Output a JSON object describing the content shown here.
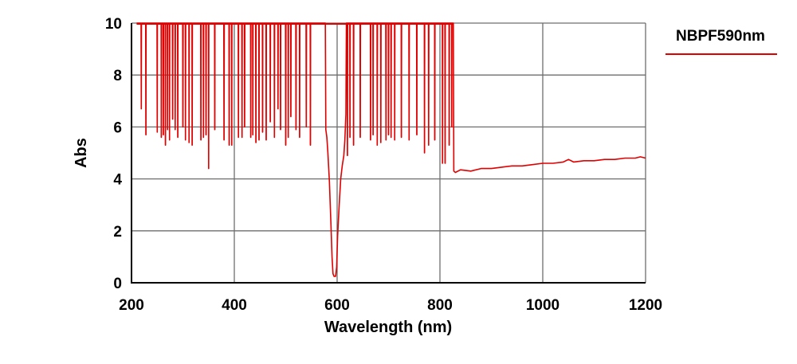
{
  "chart_data": {
    "type": "line",
    "title": "",
    "xlabel": "Wavelength (nm)",
    "ylabel": "Abs",
    "xlim": [
      200,
      1200
    ],
    "ylim": [
      0,
      10
    ],
    "xticks": [
      200,
      400,
      600,
      800,
      1000,
      1200
    ],
    "yticks": [
      0,
      2,
      4,
      6,
      8,
      10
    ],
    "grid": true,
    "legend_position": "top-right",
    "series": [
      {
        "name": "NBPF590nm",
        "color": "#e00000",
        "saturated_region": [
          210,
          826
        ],
        "saturation_value": 10,
        "spikes": [
          [
            219,
            6.7
          ],
          [
            228,
            5.7
          ],
          [
            250,
            5.8
          ],
          [
            258,
            5.6
          ],
          [
            262,
            5.7
          ],
          [
            266,
            5.3
          ],
          [
            270,
            5.9
          ],
          [
            274,
            5.5
          ],
          [
            280,
            6.3
          ],
          [
            285,
            5.9
          ],
          [
            290,
            5.6
          ],
          [
            300,
            6.0
          ],
          [
            305,
            5.5
          ],
          [
            312,
            5.4
          ],
          [
            318,
            5.3
          ],
          [
            335,
            5.5
          ],
          [
            340,
            5.6
          ],
          [
            345,
            5.7
          ],
          [
            350,
            4.4
          ],
          [
            362,
            5.9
          ],
          [
            380,
            5.5
          ],
          [
            390,
            5.3
          ],
          [
            395,
            5.3
          ],
          [
            408,
            5.6
          ],
          [
            415,
            5.6
          ],
          [
            420,
            6.0
          ],
          [
            432,
            5.6
          ],
          [
            436,
            5.7
          ],
          [
            442,
            5.4
          ],
          [
            448,
            5.5
          ],
          [
            455,
            5.8
          ],
          [
            462,
            5.5
          ],
          [
            470,
            6.2
          ],
          [
            478,
            5.6
          ],
          [
            485,
            6.7
          ],
          [
            490,
            5.9
          ],
          [
            500,
            5.3
          ],
          [
            505,
            5.6
          ],
          [
            510,
            6.4
          ],
          [
            520,
            5.9
          ],
          [
            527,
            5.6
          ],
          [
            540,
            6.0
          ],
          [
            548,
            5.3
          ],
          [
            620,
            4.9
          ],
          [
            625,
            5.6
          ],
          [
            632,
            5.3
          ],
          [
            645,
            5.6
          ],
          [
            665,
            5.5
          ],
          [
            670,
            5.7
          ],
          [
            678,
            5.3
          ],
          [
            685,
            5.4
          ],
          [
            695,
            5.5
          ],
          [
            700,
            5.7
          ],
          [
            705,
            5.6
          ],
          [
            712,
            5.5
          ],
          [
            725,
            5.6
          ],
          [
            740,
            5.5
          ],
          [
            755,
            5.7
          ],
          [
            770,
            5.0
          ],
          [
            778,
            5.3
          ],
          [
            790,
            5.5
          ],
          [
            805,
            4.6
          ],
          [
            810,
            4.6
          ],
          [
            818,
            5.3
          ],
          [
            823,
            6.0
          ]
        ],
        "dip": [
          [
            577,
            10
          ],
          [
            578,
            5.9
          ],
          [
            580,
            5.6
          ],
          [
            582,
            5.0
          ],
          [
            585,
            3.9
          ],
          [
            588,
            2.2
          ],
          [
            590,
            1.0
          ],
          [
            592,
            0.35
          ],
          [
            594,
            0.25
          ],
          [
            597,
            0.25
          ],
          [
            599,
            0.6
          ],
          [
            601,
            1.8
          ],
          [
            604,
            3.0
          ],
          [
            607,
            4.0
          ],
          [
            610,
            4.5
          ],
          [
            613,
            4.9
          ],
          [
            615,
            5.5
          ],
          [
            617,
            6.5
          ],
          [
            618,
            10
          ]
        ],
        "tail": [
          [
            826,
            10
          ],
          [
            827,
            4.3
          ],
          [
            830,
            4.25
          ],
          [
            840,
            4.35
          ],
          [
            860,
            4.3
          ],
          [
            880,
            4.4
          ],
          [
            900,
            4.4
          ],
          [
            920,
            4.45
          ],
          [
            940,
            4.5
          ],
          [
            960,
            4.5
          ],
          [
            980,
            4.55
          ],
          [
            1000,
            4.6
          ],
          [
            1020,
            4.6
          ],
          [
            1040,
            4.65
          ],
          [
            1050,
            4.75
          ],
          [
            1060,
            4.65
          ],
          [
            1080,
            4.7
          ],
          [
            1100,
            4.7
          ],
          [
            1120,
            4.75
          ],
          [
            1140,
            4.75
          ],
          [
            1160,
            4.8
          ],
          [
            1180,
            4.8
          ],
          [
            1190,
            4.85
          ],
          [
            1200,
            4.8
          ]
        ]
      }
    ]
  }
}
